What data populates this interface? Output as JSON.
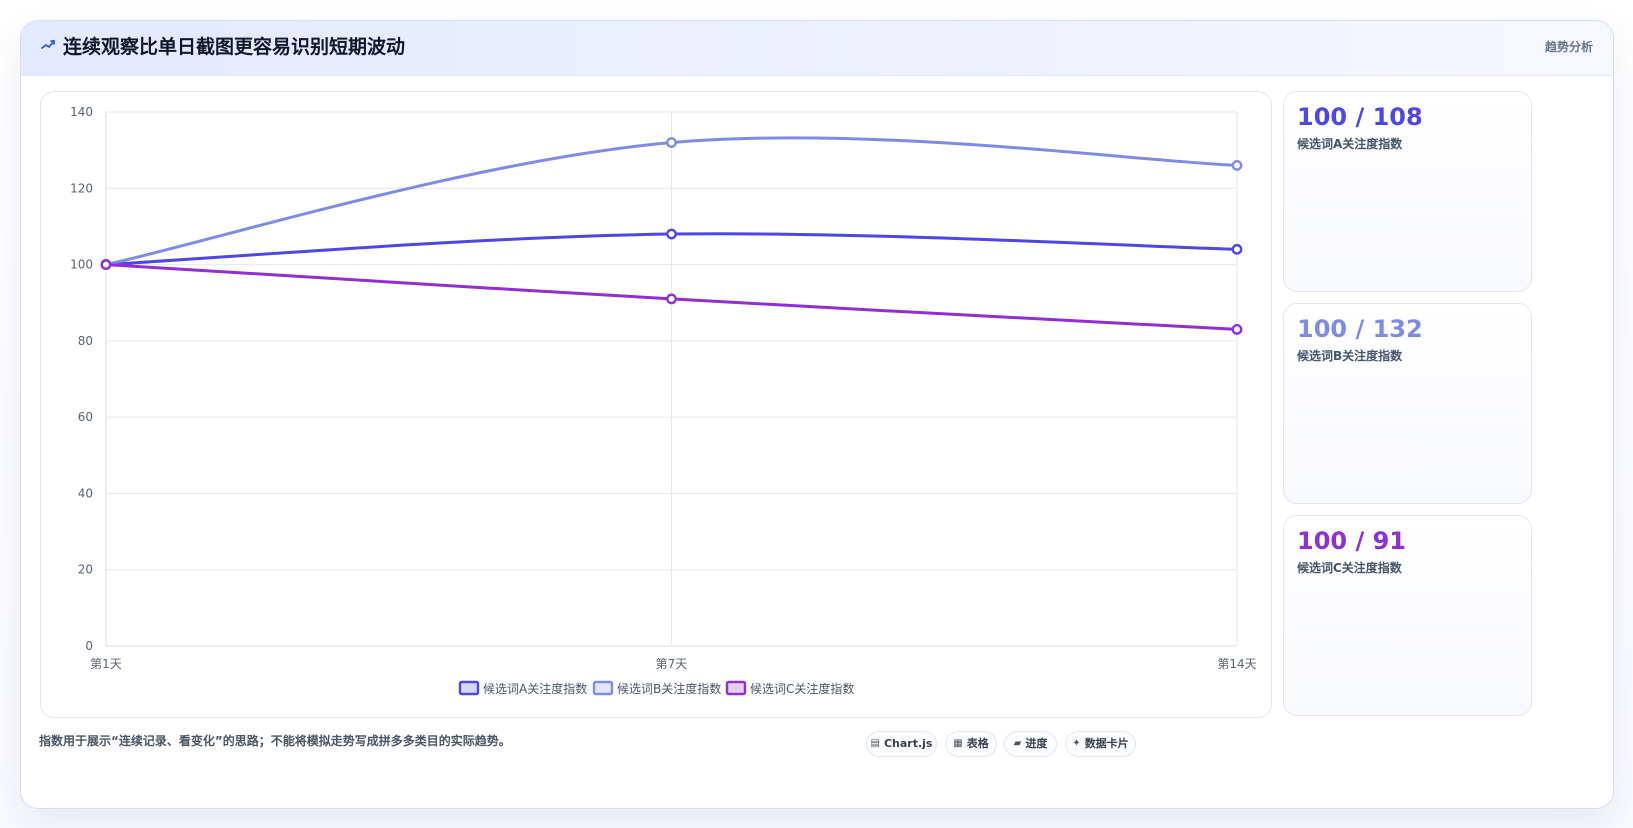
{
  "header": {
    "title": "连续观察比单日截图更容易识别短期波动",
    "icon": "trend-line-icon",
    "action_label": "趋势分析"
  },
  "chart_data": {
    "type": "line",
    "title": "",
    "xlabel": "",
    "ylabel": "",
    "categories": [
      "第1天",
      "第7天",
      "第14天"
    ],
    "x": [
      "第1天",
      "第7天",
      "第14天"
    ],
    "ylim": [
      0,
      140
    ],
    "y_ticks": [
      0,
      20,
      40,
      60,
      80,
      100,
      120,
      140
    ],
    "y_tick_labels": [
      "0",
      "20",
      "40",
      "60",
      "80",
      "100",
      "120",
      "140"
    ],
    "grid": true,
    "legend_position": "bottom",
    "series": [
      {
        "name": "候选词A关注度指数",
        "values": [
          100,
          108,
          104
        ],
        "color": "#4f46e5"
      },
      {
        "name": "候选词B关注度指数",
        "values": [
          100,
          132,
          126
        ],
        "color": "#7f8be6"
      },
      {
        "name": "候选词C关注度指数",
        "values": [
          100,
          91,
          83
        ],
        "color": "#8f2fd4"
      }
    ]
  },
  "stats": [
    {
      "value": "100 / 108",
      "label": "候选词A关注度指数",
      "color": "#4f46e5"
    },
    {
      "value": "100 / 132",
      "label": "候选词B关注度指数",
      "color": "#7f8be6"
    },
    {
      "value": "100 / 91",
      "label": "候选词C关注度指数",
      "color": "#8f2fd4"
    }
  ],
  "footer": {
    "note": "指数用于展示“连续记录、看变化”的思路；不能将模拟走势写成拼多多类目的实际趋势。",
    "chips": [
      {
        "icon": "▤",
        "icon_name": "chart-icon",
        "label": "Chart.js"
      },
      {
        "icon": "▦",
        "icon_name": "table-icon",
        "label": "表格"
      },
      {
        "icon": "▰",
        "icon_name": "progress-icon",
        "label": "进度"
      },
      {
        "icon": "✦",
        "icon_name": "card-icon",
        "label": "数据卡片"
      }
    ]
  }
}
